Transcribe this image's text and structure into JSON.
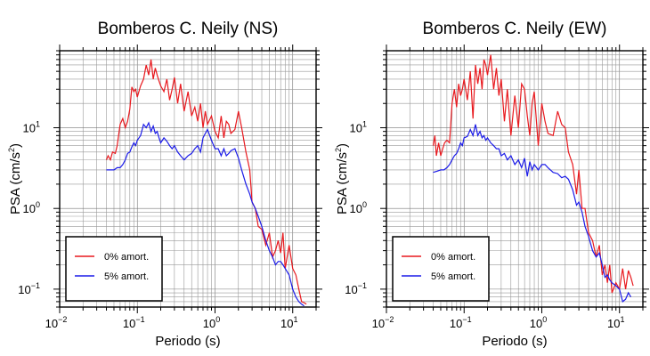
{
  "chart_data": [
    {
      "type": "line",
      "title": "Bomberos C. Neily (NS)",
      "xlabel": "Periodo (s)",
      "ylabel_main": "PSA (cm/s",
      "ylabel_sup": "2",
      "ylabel_close": ")",
      "x_scale": "log",
      "y_scale": "log",
      "xlim": [
        0.01,
        20
      ],
      "ylim": [
        0.06,
        90
      ],
      "grid": true,
      "legend_position": "bottom-left",
      "x_ticks": [
        {
          "base": "10",
          "exp": "−2",
          "value": 0.01
        },
        {
          "base": "10",
          "exp": "−1",
          "value": 0.1
        },
        {
          "base": "10",
          "exp": "0",
          "value": 1
        },
        {
          "base": "10",
          "exp": "1",
          "value": 10
        }
      ],
      "y_ticks": [
        {
          "base": "10",
          "exp": "−1",
          "value": 0.1
        },
        {
          "base": "10",
          "exp": "0",
          "value": 1
        },
        {
          "base": "10",
          "exp": "1",
          "value": 10
        }
      ],
      "series": [
        {
          "name": "0% amort.",
          "color": "#e8191e",
          "x": [
            0.04,
            0.042,
            0.045,
            0.048,
            0.052,
            0.055,
            0.06,
            0.065,
            0.07,
            0.075,
            0.08,
            0.085,
            0.09,
            0.095,
            0.1,
            0.11,
            0.12,
            0.13,
            0.14,
            0.15,
            0.16,
            0.17,
            0.18,
            0.19,
            0.2,
            0.22,
            0.24,
            0.26,
            0.28,
            0.3,
            0.33,
            0.36,
            0.4,
            0.45,
            0.5,
            0.55,
            0.6,
            0.65,
            0.7,
            0.75,
            0.8,
            0.9,
            1.0,
            1.1,
            1.2,
            1.3,
            1.4,
            1.5,
            1.6,
            1.8,
            2.0,
            2.2,
            2.5,
            2.8,
            3.0,
            3.3,
            3.6,
            4.0,
            4.5,
            5.0,
            5.5,
            6.0,
            6.5,
            7.0,
            7.5,
            8.0,
            9.0,
            10.0,
            11.0,
            12.0,
            13.0,
            14.0,
            15.0
          ],
          "y": [
            4.0,
            4.5,
            4.0,
            5.0,
            4.8,
            6.0,
            11.0,
            13.0,
            10.0,
            12.0,
            17.0,
            32.0,
            28.0,
            30.0,
            24.0,
            33.0,
            40.0,
            60.0,
            45.0,
            70.0,
            40.0,
            55.0,
            45.0,
            38.0,
            33.0,
            28.0,
            40.0,
            22.0,
            30.0,
            42.0,
            20.0,
            35.0,
            16.0,
            28.0,
            14.0,
            18.0,
            12.0,
            20.0,
            10.0,
            16.0,
            11.0,
            14.0,
            9.0,
            7.5,
            14.0,
            7.5,
            12.0,
            11.0,
            8.5,
            9.5,
            16.0,
            10.0,
            5.0,
            3.0,
            1.2,
            1.0,
            0.6,
            0.55,
            0.35,
            0.5,
            0.25,
            0.3,
            0.4,
            0.28,
            0.5,
            0.18,
            0.35,
            0.18,
            0.15,
            0.1,
            0.07,
            0.068,
            0.065
          ]
        },
        {
          "name": "5% amort.",
          "color": "#1b1be8",
          "x": [
            0.04,
            0.045,
            0.05,
            0.055,
            0.06,
            0.065,
            0.07,
            0.075,
            0.08,
            0.085,
            0.09,
            0.095,
            0.1,
            0.11,
            0.12,
            0.13,
            0.14,
            0.15,
            0.16,
            0.17,
            0.18,
            0.19,
            0.2,
            0.22,
            0.24,
            0.26,
            0.28,
            0.3,
            0.33,
            0.36,
            0.4,
            0.45,
            0.5,
            0.55,
            0.6,
            0.65,
            0.7,
            0.75,
            0.8,
            0.9,
            1.0,
            1.1,
            1.2,
            1.3,
            1.4,
            1.5,
            1.6,
            1.8,
            2.0,
            2.2,
            2.5,
            2.8,
            3.0,
            3.3,
            3.6,
            4.0,
            4.5,
            5.0,
            5.5,
            6.0,
            6.5,
            7.0,
            7.5,
            8.0,
            9.0,
            10.0,
            11.0,
            12.0,
            13.0,
            14.0
          ],
          "y": [
            3.0,
            3.0,
            3.0,
            3.2,
            3.2,
            3.5,
            4.0,
            4.8,
            5.0,
            5.8,
            6.5,
            6.0,
            7.0,
            8.0,
            11.0,
            10.0,
            11.5,
            9.0,
            10.5,
            8.5,
            9.0,
            7.5,
            6.5,
            7.5,
            6.8,
            6.0,
            5.5,
            6.0,
            5.0,
            4.5,
            4.0,
            4.5,
            4.8,
            5.5,
            6.0,
            5.0,
            7.5,
            8.5,
            9.5,
            7.0,
            5.5,
            5.5,
            4.5,
            5.5,
            4.5,
            4.8,
            5.2,
            5.5,
            4.2,
            3.0,
            2.0,
            1.5,
            1.2,
            1.0,
            0.8,
            0.6,
            0.4,
            0.3,
            0.25,
            0.2,
            0.22,
            0.22,
            0.2,
            0.18,
            0.15,
            0.1,
            0.08,
            0.07,
            0.065,
            0.062
          ]
        }
      ]
    },
    {
      "type": "line",
      "title": "Bomberos C. Neily (EW)",
      "xlabel": "Periodo (s)",
      "ylabel_main": "PSA (cm/s",
      "ylabel_sup": "2",
      "ylabel_close": ")",
      "x_scale": "log",
      "y_scale": "log",
      "xlim": [
        0.01,
        20
      ],
      "ylim": [
        0.06,
        90
      ],
      "grid": true,
      "legend_position": "bottom-left",
      "x_ticks": [
        {
          "base": "10",
          "exp": "−2",
          "value": 0.01
        },
        {
          "base": "10",
          "exp": "−1",
          "value": 0.1
        },
        {
          "base": "10",
          "exp": "0",
          "value": 1
        },
        {
          "base": "10",
          "exp": "1",
          "value": 10
        }
      ],
      "y_ticks": [
        {
          "base": "10",
          "exp": "−1",
          "value": 0.1
        },
        {
          "base": "10",
          "exp": "0",
          "value": 1
        },
        {
          "base": "10",
          "exp": "1",
          "value": 10
        }
      ],
      "series": [
        {
          "name": "0% amort.",
          "color": "#e8191e",
          "x": [
            0.04,
            0.042,
            0.044,
            0.047,
            0.05,
            0.053,
            0.056,
            0.06,
            0.065,
            0.07,
            0.075,
            0.08,
            0.085,
            0.09,
            0.095,
            0.1,
            0.11,
            0.12,
            0.13,
            0.14,
            0.15,
            0.16,
            0.17,
            0.18,
            0.19,
            0.2,
            0.22,
            0.24,
            0.26,
            0.28,
            0.3,
            0.33,
            0.36,
            0.4,
            0.45,
            0.5,
            0.55,
            0.6,
            0.65,
            0.7,
            0.75,
            0.8,
            0.9,
            1.0,
            1.1,
            1.2,
            1.4,
            1.6,
            1.8,
            2.0,
            2.2,
            2.5,
            2.8,
            3.0,
            3.3,
            3.6,
            4.0,
            4.5,
            5.0,
            5.5,
            6.0,
            6.5,
            7.0,
            7.5,
            8.0,
            9.0,
            10.0,
            11.0,
            12.0,
            13.0,
            14.0,
            15.0
          ],
          "y": [
            6.0,
            8.0,
            4.5,
            6.5,
            4.5,
            5.5,
            6.5,
            7.0,
            6.5,
            20.0,
            30.0,
            18.0,
            35.0,
            25.0,
            30.0,
            40.0,
            22.0,
            50.0,
            13.0,
            60.0,
            35.0,
            55.0,
            30.0,
            70.0,
            60.0,
            45.0,
            80.0,
            30.0,
            55.0,
            25.0,
            40.0,
            12.0,
            30.0,
            8.0,
            25.0,
            10.0,
            35.0,
            30.0,
            14.0,
            8.0,
            20.0,
            28.0,
            6.0,
            20.0,
            12.0,
            8.5,
            8.0,
            16.0,
            11.0,
            10.0,
            5.0,
            3.5,
            1.5,
            3.0,
            1.0,
            1.0,
            0.5,
            0.4,
            0.25,
            0.35,
            0.15,
            0.2,
            0.12,
            0.2,
            0.09,
            0.12,
            0.1,
            0.18,
            0.1,
            0.17,
            0.14,
            0.11
          ]
        },
        {
          "name": "5% amort.",
          "color": "#1b1be8",
          "x": [
            0.04,
            0.045,
            0.05,
            0.055,
            0.06,
            0.065,
            0.07,
            0.075,
            0.08,
            0.085,
            0.09,
            0.095,
            0.1,
            0.11,
            0.12,
            0.13,
            0.14,
            0.15,
            0.16,
            0.17,
            0.18,
            0.19,
            0.2,
            0.22,
            0.24,
            0.26,
            0.28,
            0.3,
            0.33,
            0.36,
            0.4,
            0.45,
            0.5,
            0.55,
            0.6,
            0.65,
            0.7,
            0.75,
            0.8,
            0.9,
            1.0,
            1.1,
            1.2,
            1.4,
            1.6,
            1.8,
            2.0,
            2.2,
            2.5,
            2.8,
            3.0,
            3.3,
            3.6,
            4.0,
            4.5,
            5.0,
            5.5,
            6.0,
            6.5,
            7.0,
            7.5,
            8.0,
            9.0,
            10.0,
            11.0,
            12.0,
            13.0,
            14.0
          ],
          "y": [
            2.8,
            2.9,
            3.0,
            3.0,
            3.2,
            3.5,
            4.0,
            4.5,
            4.8,
            5.5,
            6.5,
            6.0,
            7.5,
            7.8,
            9.5,
            8.0,
            11.0,
            8.0,
            9.0,
            7.5,
            8.0,
            7.0,
            7.5,
            6.5,
            6.0,
            5.5,
            5.5,
            4.5,
            4.8,
            4.0,
            4.5,
            3.5,
            4.0,
            3.2,
            4.2,
            2.5,
            3.8,
            3.0,
            3.5,
            3.0,
            3.5,
            3.5,
            3.2,
            2.8,
            2.7,
            2.4,
            2.5,
            2.3,
            1.7,
            1.1,
            1.2,
            0.9,
            0.6,
            0.45,
            0.3,
            0.25,
            0.28,
            0.2,
            0.14,
            0.15,
            0.13,
            0.12,
            0.11,
            0.1,
            0.07,
            0.075,
            0.09,
            0.08
          ]
        }
      ]
    }
  ]
}
